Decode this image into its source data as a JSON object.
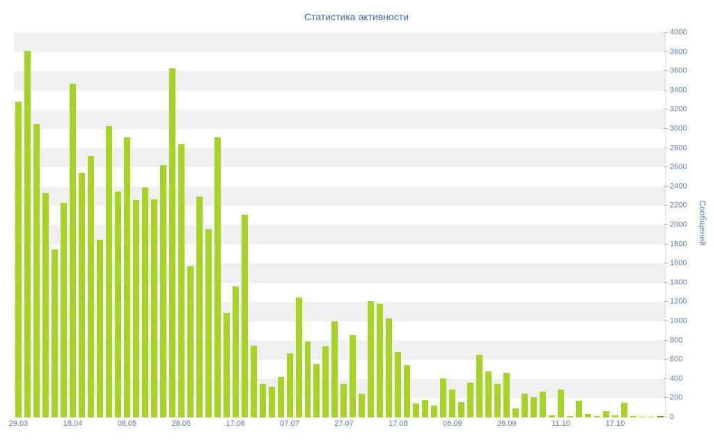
{
  "title": "Статистика активности",
  "colors": {
    "bar": "#a6d426",
    "bar_last": "#c87a2b",
    "title_text": "#3f68a8",
    "axis_text": "#5a79a3",
    "stripe": "#f0f0f0",
    "background": "#ffffff"
  },
  "chart_data": {
    "type": "bar",
    "title": "Статистика активности",
    "xlabel": "",
    "ylabel": "Сообщений",
    "ylim": [
      0,
      4000
    ],
    "ytick_step": 200,
    "grid": "striped-horizontal-bands",
    "legend": "none",
    "y_axis_position": "right",
    "x_tick_labels": [
      "29.03",
      "18.04",
      "08.05",
      "28.05",
      "17.06",
      "07.07",
      "27.07",
      "17.08",
      "06.09",
      "26.09",
      "11.10",
      "17.10"
    ],
    "x_tick_indices": [
      0,
      6,
      12,
      18,
      24,
      30,
      36,
      42,
      48,
      54,
      60,
      66
    ],
    "values": [
      3280,
      3810,
      3050,
      2330,
      1750,
      2230,
      3470,
      2540,
      2720,
      1850,
      3030,
      2350,
      2910,
      2260,
      2390,
      2270,
      2620,
      3630,
      2840,
      1570,
      2300,
      1960,
      2910,
      1090,
      1360,
      2110,
      750,
      350,
      320,
      420,
      670,
      1250,
      790,
      560,
      740,
      1000,
      350,
      855,
      245,
      1210,
      1180,
      1030,
      680,
      545,
      145,
      180,
      125,
      405,
      290,
      160,
      360,
      650,
      480,
      350,
      465,
      95,
      245,
      210,
      270,
      20,
      290,
      15,
      175,
      35,
      15,
      65,
      20,
      150,
      15,
      8,
      8,
      15
    ],
    "highlight_last_bar": true
  }
}
